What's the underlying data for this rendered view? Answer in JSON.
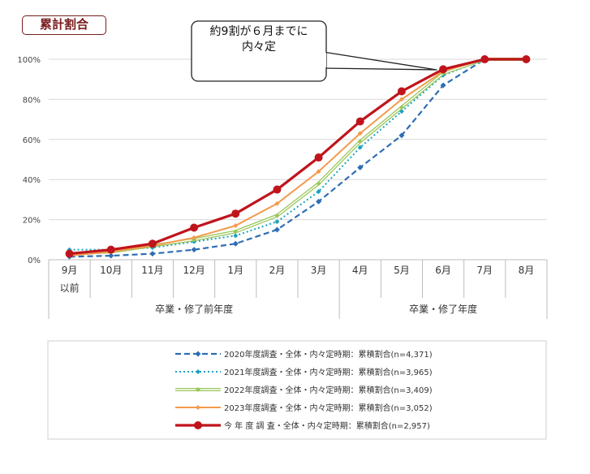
{
  "badge": "累計割合",
  "callout": {
    "line1": "約9割が６月までに",
    "line2": "内々定"
  },
  "colors": {
    "badge": "#7a1c1c",
    "s2020": "#2f6eb5",
    "s2021": "#1aa3c0",
    "s2022": "#9ac65a",
    "s2023": "#f39a4c",
    "current": "#c0141c"
  },
  "chart_data": {
    "type": "line",
    "x": [
      "9月",
      "10月",
      "11月",
      "12月",
      "1月",
      "2月",
      "3月",
      "4月",
      "5月",
      "6月",
      "7月",
      "8月"
    ],
    "x_sub": [
      "以前",
      "",
      "",
      "",
      "",
      "",
      "",
      "",
      "",
      "",
      "",
      ""
    ],
    "groups": [
      {
        "label": "卒業・修了前年度",
        "from": 0,
        "to": 6
      },
      {
        "label": "卒業・修了年度",
        "from": 7,
        "to": 11
      }
    ],
    "ylim": [
      0,
      100
    ],
    "yticks": [
      "0%",
      "20%",
      "40%",
      "60%",
      "80%",
      "100%"
    ],
    "grid": true,
    "legend_position": "bottom",
    "series": [
      {
        "name": "2020年度調査・全体・内々定時期：累積割合(n=4,371)",
        "values": [
          1.5,
          2,
          3,
          5,
          8,
          15,
          29,
          46,
          62,
          87,
          100,
          100
        ]
      },
      {
        "name": "2021年度調査・全体・内々定時期：累積割合(n=3,965)",
        "values": [
          5,
          5,
          6,
          9,
          12,
          19,
          34,
          56,
          74,
          92,
          100,
          100
        ]
      },
      {
        "name": "2022年度調査・全体・内々定時期：累積割合(n=3,409)",
        "values": [
          3,
          4,
          7,
          10,
          14,
          22,
          38,
          59,
          76,
          93,
          100,
          100
        ]
      },
      {
        "name": "2023年度調査・全体・内々定時期：累積割合(n=3,052)",
        "values": [
          2,
          4,
          7,
          11,
          17,
          28,
          44,
          63,
          80,
          94,
          100,
          100
        ]
      },
      {
        "name": "今 年 度 調 査・全体・内々定時期：累積割合(n=2,957)",
        "values": [
          3,
          5,
          8,
          16,
          23,
          35,
          51,
          69,
          84,
          95,
          100,
          100
        ]
      }
    ]
  }
}
